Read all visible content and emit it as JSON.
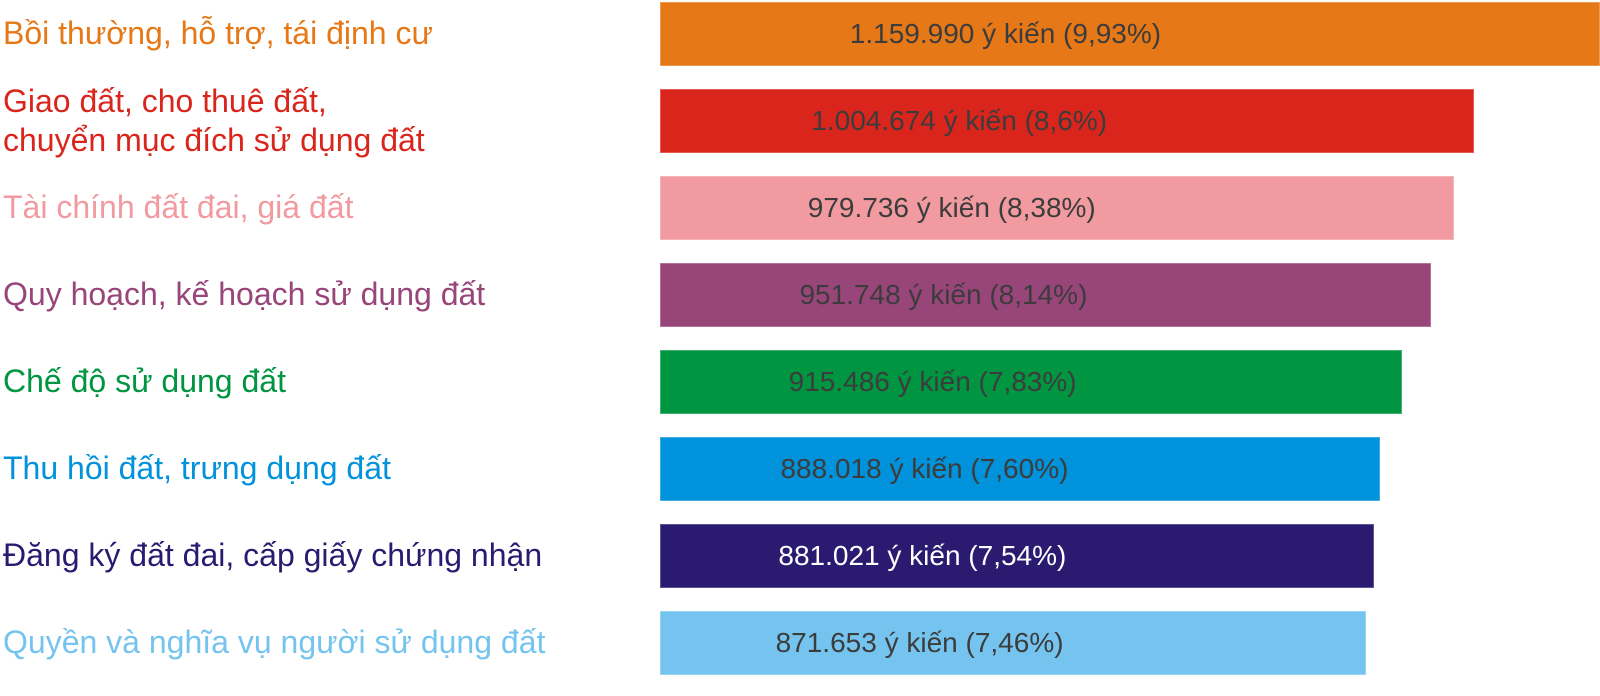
{
  "chart_data": {
    "type": "bar",
    "orientation": "horizontal",
    "title": "",
    "xlabel": "",
    "ylabel": "",
    "xlim": [
      0,
      1159990
    ],
    "grid": false,
    "legend": "none",
    "value_unit": "ý kiến",
    "categories": [
      "Bồi thường, hỗ trợ, tái định cư",
      "Giao đất, cho thuê đất, chuyển mục đích sử dụng đất",
      "Tài chính đất đai, giá đất",
      "Quy hoạch, kế hoạch sử dụng đất",
      "Chế độ sử dụng đất",
      "Thu hồi đất, trưng dụng đất",
      "Đăng ký đất đai, cấp giấy chứng nhận",
      "Quyền và nghĩa vụ người sử dụng đất"
    ],
    "values": [
      1159990,
      1004674,
      979736,
      951748,
      915486,
      888018,
      881021,
      871653
    ],
    "percents": [
      "9,93%",
      "8,6%",
      "8,38%",
      "8,14%",
      "7,83%",
      "7,60%",
      "7,54%",
      "7,46%"
    ],
    "rows": [
      {
        "label": "Bồi thường, hỗ trợ, tái định cư",
        "value": 1159990,
        "value_label": "1.159.990 ý kiến (9,93%)",
        "color": "#E67817",
        "value_text_color": "#3C3C3C"
      },
      {
        "label": "Giao đất, cho thuê đất,\nchuyển mục đích sử dụng đất",
        "value": 1004674,
        "value_label": "1.004.674 ý kiến (8,6%)",
        "color": "#D9251C",
        "value_text_color": "#3C3C3C"
      },
      {
        "label": "Tài chính đất đai, giá đất",
        "value": 979736,
        "value_label": "979.736 ý kiến (8,38%)",
        "color": "#F19BA0",
        "value_text_color": "#3C3C3C"
      },
      {
        "label": "Quy hoạch, kế hoạch sử dụng đất",
        "value": 951748,
        "value_label": "951.748 ý kiến (8,14%)",
        "color": "#984579",
        "value_text_color": "#3C3C3C"
      },
      {
        "label": "Chế độ sử dụng đất",
        "value": 915486,
        "value_label": "915.486 ý kiến (7,83%)",
        "color": "#009540",
        "value_text_color": "#3C3C3C"
      },
      {
        "label": "Thu hồi đất, trưng dụng đất",
        "value": 888018,
        "value_label": "888.018 ý kiến (7,60%)",
        "color": "#0092DB",
        "value_text_color": "#3C3C3C"
      },
      {
        "label": "Đăng ký đất đai, cấp giấy chứng nhận",
        "value": 881021,
        "value_label": "881.021 ý kiến (7,54%)",
        "color": "#2A1A70",
        "value_text_color": "#FFFFFF"
      },
      {
        "label": "Quyền và nghĩa vụ người sử dụng đất",
        "value": 871653,
        "value_label": "871.653 ý kiến (7,46%)",
        "color": "#75C4EF",
        "value_text_color": "#3C3C3C"
      }
    ]
  }
}
